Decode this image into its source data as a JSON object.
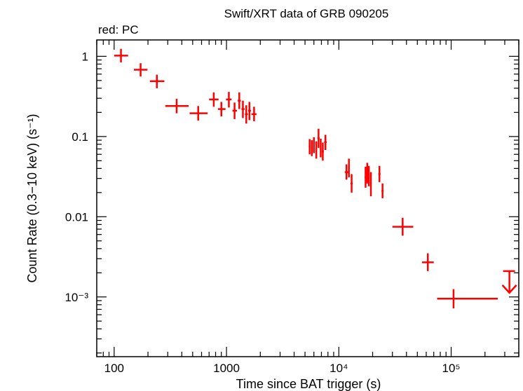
{
  "chart_data": {
    "type": "scatter",
    "title": "Swift/XRT data of GRB 090205",
    "subtitle": "red: PC",
    "xlabel": "Time since BAT trigger (s)",
    "ylabel": "Count Rate (0.3−10 keV) (s⁻¹)",
    "x_scale": "log",
    "y_scale": "log",
    "xlim": [
      70,
      400000
    ],
    "ylim": [
      0.00018,
      1.6
    ],
    "x_ticks": [
      {
        "value": 100,
        "label": "100"
      },
      {
        "value": 1000,
        "label": "1000"
      },
      {
        "value": 10000,
        "label": "10⁴"
      },
      {
        "value": 100000,
        "label": "10⁵"
      }
    ],
    "y_ticks": [
      {
        "value": 1,
        "label": "1"
      },
      {
        "value": 0.1,
        "label": "0.1"
      },
      {
        "value": 0.01,
        "label": "0.01"
      },
      {
        "value": 0.001,
        "label": "10⁻³"
      }
    ],
    "color": "#ff0000",
    "series": [
      {
        "points": [
          {
            "x": 115,
            "xlo": 100,
            "xhi": 133,
            "y": 1.02,
            "ylo": 0.84,
            "yhi": 1.24
          },
          {
            "x": 172,
            "xlo": 150,
            "xhi": 198,
            "y": 0.68,
            "ylo": 0.56,
            "yhi": 0.82
          },
          {
            "x": 240,
            "xlo": 208,
            "xhi": 280,
            "y": 0.49,
            "ylo": 0.4,
            "yhi": 0.59
          },
          {
            "x": 360,
            "xlo": 285,
            "xhi": 460,
            "y": 0.24,
            "ylo": 0.195,
            "yhi": 0.295
          },
          {
            "x": 560,
            "xlo": 470,
            "xhi": 680,
            "y": 0.195,
            "ylo": 0.158,
            "yhi": 0.24
          },
          {
            "x": 770,
            "xlo": 700,
            "xhi": 850,
            "y": 0.29,
            "ylo": 0.235,
            "yhi": 0.355
          },
          {
            "x": 900,
            "xlo": 840,
            "xhi": 980,
            "y": 0.22,
            "ylo": 0.178,
            "yhi": 0.27
          },
          {
            "x": 1050,
            "xlo": 990,
            "xhi": 1110,
            "y": 0.29,
            "ylo": 0.23,
            "yhi": 0.36
          },
          {
            "x": 1180,
            "xlo": 1130,
            "xhi": 1240,
            "y": 0.21,
            "ylo": 0.165,
            "yhi": 0.265
          },
          {
            "x": 1300,
            "xlo": 1260,
            "xhi": 1340,
            "y": 0.28,
            "ylo": 0.22,
            "yhi": 0.355
          },
          {
            "x": 1400,
            "xlo": 1360,
            "xhi": 1450,
            "y": 0.22,
            "ylo": 0.17,
            "yhi": 0.28
          },
          {
            "x": 1500,
            "xlo": 1460,
            "xhi": 1550,
            "y": 0.19,
            "ylo": 0.145,
            "yhi": 0.245
          },
          {
            "x": 1600,
            "xlo": 1560,
            "xhi": 1650,
            "y": 0.21,
            "ylo": 0.16,
            "yhi": 0.27
          },
          {
            "x": 1760,
            "xlo": 1670,
            "xhi": 1850,
            "y": 0.19,
            "ylo": 0.155,
            "yhi": 0.235
          },
          {
            "x": 5500,
            "xlo": 5400,
            "xhi": 5600,
            "y": 0.075,
            "ylo": 0.06,
            "yhi": 0.093
          },
          {
            "x": 5750,
            "xlo": 5650,
            "xhi": 5850,
            "y": 0.072,
            "ylo": 0.057,
            "yhi": 0.09
          },
          {
            "x": 6000,
            "xlo": 5900,
            "xhi": 6100,
            "y": 0.078,
            "ylo": 0.062,
            "yhi": 0.098
          },
          {
            "x": 6300,
            "xlo": 6200,
            "xhi": 6400,
            "y": 0.068,
            "ylo": 0.053,
            "yhi": 0.087
          },
          {
            "x": 6600,
            "xlo": 6450,
            "xhi": 6750,
            "y": 0.095,
            "ylo": 0.072,
            "yhi": 0.125
          },
          {
            "x": 6900,
            "xlo": 6800,
            "xhi": 7000,
            "y": 0.072,
            "ylo": 0.055,
            "yhi": 0.094
          },
          {
            "x": 7200,
            "xlo": 7050,
            "xhi": 7350,
            "y": 0.065,
            "ylo": 0.05,
            "yhi": 0.084
          },
          {
            "x": 7600,
            "xlo": 7400,
            "xhi": 7800,
            "y": 0.085,
            "ylo": 0.068,
            "yhi": 0.105
          },
          {
            "x": 11700,
            "xlo": 11300,
            "xhi": 12100,
            "y": 0.036,
            "ylo": 0.029,
            "yhi": 0.045
          },
          {
            "x": 12300,
            "xlo": 12100,
            "xhi": 12500,
            "y": 0.041,
            "ylo": 0.031,
            "yhi": 0.053
          },
          {
            "x": 13000,
            "xlo": 12700,
            "xhi": 13300,
            "y": 0.026,
            "ylo": 0.02,
            "yhi": 0.034
          },
          {
            "x": 17300,
            "xlo": 17000,
            "xhi": 17600,
            "y": 0.031,
            "ylo": 0.023,
            "yhi": 0.042
          },
          {
            "x": 17900,
            "xlo": 17600,
            "xhi": 18200,
            "y": 0.035,
            "ylo": 0.026,
            "yhi": 0.047
          },
          {
            "x": 18500,
            "xlo": 18200,
            "xhi": 18800,
            "y": 0.032,
            "ylo": 0.024,
            "yhi": 0.043
          },
          {
            "x": 19300,
            "xlo": 19000,
            "xhi": 19600,
            "y": 0.026,
            "ylo": 0.018,
            "yhi": 0.036
          },
          {
            "x": 23000,
            "xlo": 22500,
            "xhi": 23500,
            "y": 0.034,
            "ylo": 0.027,
            "yhi": 0.043
          },
          {
            "x": 24500,
            "xlo": 24000,
            "xhi": 25000,
            "y": 0.021,
            "ylo": 0.017,
            "yhi": 0.026
          },
          {
            "x": 37000,
            "xlo": 30000,
            "xhi": 46000,
            "y": 0.0075,
            "ylo": 0.0058,
            "yhi": 0.0097
          },
          {
            "x": 62000,
            "xlo": 55000,
            "xhi": 70000,
            "y": 0.0027,
            "ylo": 0.0021,
            "yhi": 0.0035
          },
          {
            "x": 105000,
            "xlo": 75000,
            "xhi": 260000,
            "y": 0.00095,
            "ylo": 0.00072,
            "yhi": 0.00125
          }
        ],
        "upper_limits": [
          {
            "x": 330000,
            "xlo": 290000,
            "xhi": 370000,
            "y": 0.0021
          }
        ]
      }
    ]
  }
}
